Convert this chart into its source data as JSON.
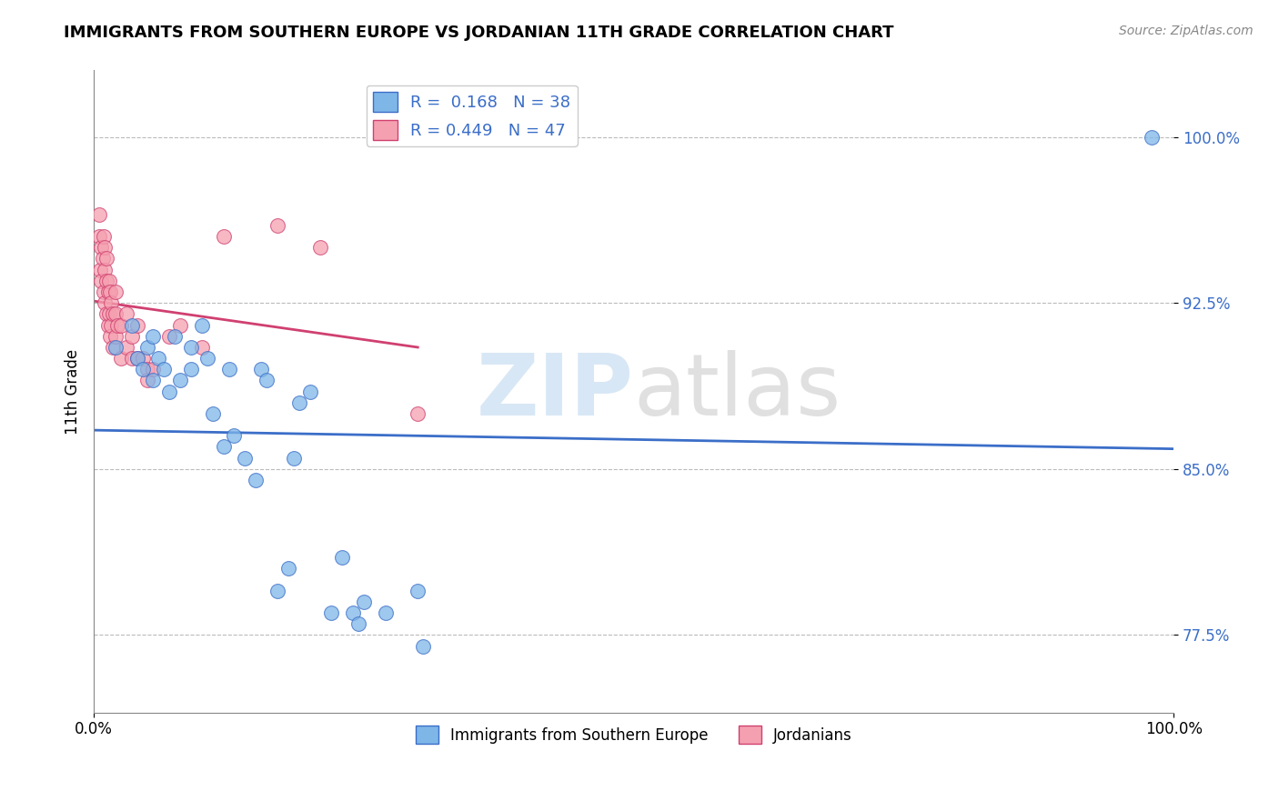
{
  "title": "IMMIGRANTS FROM SOUTHERN EUROPE VS JORDANIAN 11TH GRADE CORRELATION CHART",
  "source": "Source: ZipAtlas.com",
  "ylabel": "11th Grade",
  "xlim": [
    0.0,
    100.0
  ],
  "ylim": [
    74.0,
    103.0
  ],
  "blue_R": 0.168,
  "blue_N": 38,
  "pink_R": 0.449,
  "pink_N": 47,
  "blue_color": "#7EB6E8",
  "pink_color": "#F5A0B0",
  "blue_line_color": "#3B6EC8",
  "pink_line_color": "#D04070",
  "watermark_zip": "ZIP",
  "watermark_atlas": "atlas",
  "legend_blue_label": "R =  0.168   N = 38",
  "legend_pink_label": "R = 0.449   N = 47",
  "legend_label_blue": "Immigrants from Southern Europe",
  "legend_label_pink": "Jordanians",
  "blue_x": [
    2.0,
    3.5,
    4.0,
    4.5,
    5.0,
    5.5,
    5.5,
    6.0,
    6.5,
    7.0,
    7.5,
    8.0,
    9.0,
    9.0,
    10.0,
    10.5,
    11.0,
    12.0,
    12.5,
    13.0,
    14.0,
    15.0,
    15.5,
    16.0,
    17.0,
    18.0,
    18.5,
    19.0,
    20.0,
    22.0,
    23.0,
    24.0,
    24.5,
    25.0,
    27.0,
    30.0,
    30.5,
    98.0
  ],
  "blue_y": [
    90.5,
    91.5,
    90.0,
    89.5,
    90.5,
    91.0,
    89.0,
    90.0,
    89.5,
    88.5,
    91.0,
    89.0,
    90.5,
    89.5,
    91.5,
    90.0,
    87.5,
    86.0,
    89.5,
    86.5,
    85.5,
    84.5,
    89.5,
    89.0,
    79.5,
    80.5,
    85.5,
    88.0,
    88.5,
    78.5,
    81.0,
    78.5,
    78.0,
    79.0,
    78.5,
    79.5,
    77.0,
    100.0
  ],
  "pink_x": [
    0.5,
    0.5,
    0.6,
    0.7,
    0.7,
    0.8,
    0.9,
    0.9,
    1.0,
    1.0,
    1.0,
    1.2,
    1.2,
    1.2,
    1.3,
    1.3,
    1.4,
    1.4,
    1.5,
    1.5,
    1.6,
    1.6,
    1.8,
    1.8,
    2.0,
    2.0,
    2.0,
    2.2,
    2.5,
    2.5,
    3.0,
    3.0,
    3.5,
    3.5,
    4.0,
    4.0,
    4.5,
    5.0,
    5.0,
    5.5,
    7.0,
    8.0,
    10.0,
    12.0,
    17.0,
    21.0,
    30.0
  ],
  "pink_y": [
    95.5,
    96.5,
    94.0,
    93.5,
    95.0,
    94.5,
    93.0,
    95.5,
    92.5,
    94.0,
    95.0,
    92.0,
    93.5,
    94.5,
    91.5,
    93.0,
    92.0,
    93.5,
    91.0,
    93.0,
    91.5,
    92.5,
    90.5,
    92.0,
    91.0,
    92.0,
    93.0,
    91.5,
    90.0,
    91.5,
    90.5,
    92.0,
    90.0,
    91.0,
    90.0,
    91.5,
    90.0,
    89.5,
    89.0,
    89.5,
    91.0,
    91.5,
    90.5,
    95.5,
    96.0,
    95.0,
    87.5
  ],
  "ytick_vals": [
    77.5,
    85.0,
    92.5,
    100.0
  ],
  "gridline_vals": [
    77.5,
    85.0,
    92.5,
    100.0
  ],
  "xtick_vals": [
    0.0,
    50.0,
    100.0
  ],
  "xtick_labels": [
    "0.0%",
    "",
    "100.0%"
  ]
}
